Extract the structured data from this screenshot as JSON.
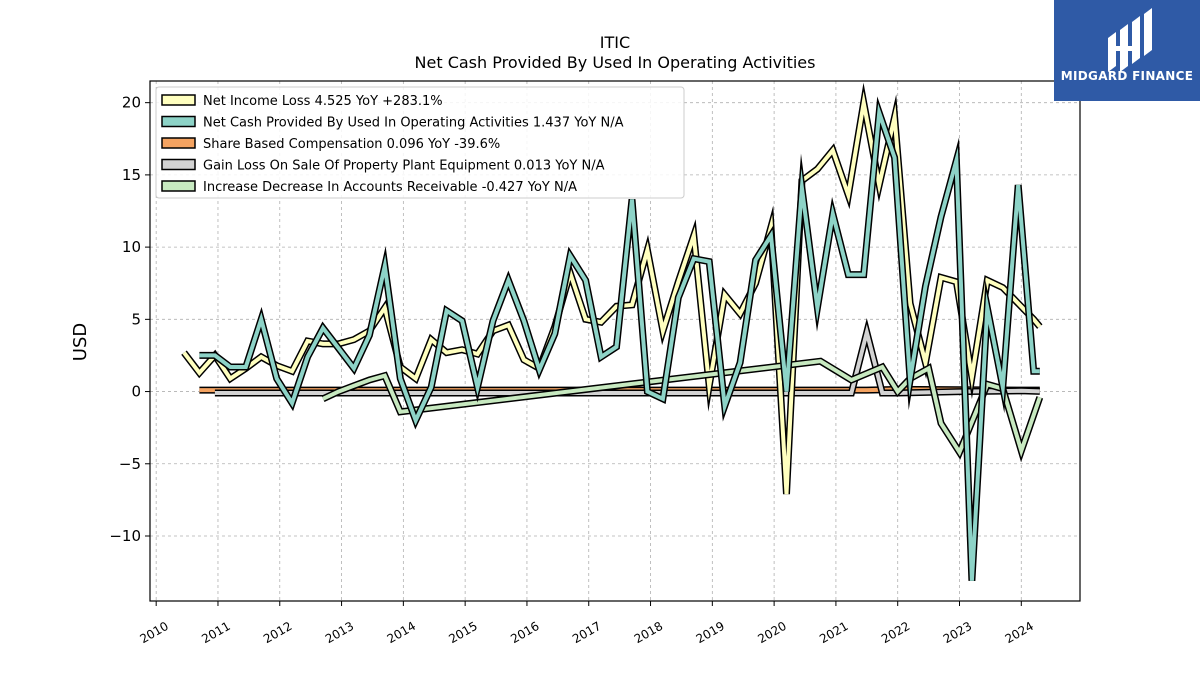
{
  "chart_data": {
    "type": "line",
    "title": "ITIC",
    "subtitle": "Net Cash Provided By Used In Operating Activities",
    "ylabel": "USD",
    "xlabel": "",
    "xlim": [
      2009.9,
      2024.95
    ],
    "ylim": [
      -14.5,
      21.5
    ],
    "yticks": [
      -10,
      -5,
      0,
      5,
      10,
      15,
      20
    ],
    "ytick_labels": [
      "−10",
      "−5",
      "0",
      "5",
      "10",
      "15",
      "20"
    ],
    "xticks": [
      2010,
      2011,
      2012,
      2013,
      2014,
      2015,
      2016,
      2017,
      2018,
      2019,
      2020,
      2021,
      2022,
      2023,
      2024
    ],
    "xtick_labels": [
      "2010",
      "2011",
      "2012",
      "2013",
      "2014",
      "2015",
      "2016",
      "2017",
      "2018",
      "2019",
      "2020",
      "2021",
      "2022",
      "2023",
      "2024"
    ],
    "grid": true,
    "legend_position": "top-left",
    "series": [
      {
        "name": "Share Based Compensation",
        "legend_label": "Share Based Compensation  0.096 YoY -39.6%",
        "color": "#f4a361",
        "x": [
          2010.7,
          2011.0,
          2012.0,
          2013.0,
          2014.0,
          2015.0,
          2016.0,
          2017.0,
          2018.0,
          2019.0,
          2020.0,
          2021.0,
          2021.3,
          2021.5,
          2022.0,
          2023.0,
          2024.0,
          2024.3
        ],
        "values": [
          0.1,
          0.1,
          0.1,
          0.1,
          0.1,
          0.1,
          0.1,
          0.1,
          0.1,
          0.1,
          0.1,
          0.1,
          0.1,
          0.1,
          0.15,
          0.12,
          0.1,
          0.1
        ]
      },
      {
        "name": "Gain Loss On Sale Of Property Plant Equipment",
        "legend_label": "Gain Loss On Sale Of Property Plant Equipment  0.013 YoY N/A",
        "color": "#d3d3d3",
        "x": [
          2010.95,
          2012.0,
          2013.0,
          2014.0,
          2015.0,
          2016.0,
          2017.0,
          2018.0,
          2019.0,
          2020.0,
          2021.0,
          2021.25,
          2021.5,
          2021.75,
          2022.0,
          2023.0,
          2024.0,
          2024.3
        ],
        "values": [
          -0.1,
          -0.1,
          -0.1,
          -0.1,
          -0.1,
          -0.1,
          -0.1,
          -0.1,
          -0.1,
          -0.1,
          -0.1,
          -0.1,
          4.1,
          -0.1,
          -0.1,
          0.0,
          0.05,
          0.01
        ]
      },
      {
        "name": "Net Income Loss",
        "legend_label": "Net Income Loss  4.525 YoY +283.1%",
        "color": "#ffffbf",
        "x": [
          2010.45,
          2010.7,
          2010.95,
          2011.2,
          2011.45,
          2011.7,
          2011.95,
          2012.2,
          2012.45,
          2012.7,
          2012.95,
          2013.2,
          2013.45,
          2013.7,
          2013.95,
          2014.2,
          2014.45,
          2014.7,
          2014.95,
          2015.2,
          2015.45,
          2015.7,
          2015.95,
          2016.2,
          2016.45,
          2016.7,
          2016.95,
          2017.2,
          2017.45,
          2017.7,
          2017.95,
          2018.2,
          2018.45,
          2018.7,
          2018.95,
          2019.2,
          2019.45,
          2019.7,
          2019.95,
          2020.2,
          2020.45,
          2020.7,
          2020.95,
          2021.2,
          2021.45,
          2021.7,
          2021.95,
          2022.2,
          2022.45,
          2022.7,
          2022.95,
          2023.2,
          2023.45,
          2023.7,
          2023.95,
          2024.2,
          2024.3
        ],
        "values": [
          2.7,
          1.3,
          2.5,
          0.9,
          1.6,
          2.4,
          1.8,
          1.4,
          3.5,
          3.3,
          3.3,
          3.6,
          4.2,
          5.8,
          1.7,
          0.9,
          3.6,
          2.7,
          2.9,
          2.6,
          4.2,
          4.6,
          2.2,
          1.6,
          4.5,
          8.2,
          5.0,
          4.8,
          5.9,
          6.0,
          9.8,
          4.2,
          7.6,
          10.8,
          0.4,
          6.7,
          5.4,
          7.5,
          11.4,
          -7.1,
          14.6,
          15.4,
          16.7,
          13.6,
          20.0,
          14.3,
          19.0,
          6.1,
          2.0,
          7.9,
          7.6,
          1.0,
          7.7,
          7.2,
          6.1,
          5.0,
          4.5
        ]
      },
      {
        "name": "Increase Decrease In Accounts Receivable",
        "legend_label": "Increase Decrease In Accounts Receivable  -0.427 YoY N/A",
        "color": "#c7e9c0",
        "x": [
          2012.7,
          2012.95,
          2013.2,
          2013.45,
          2013.7,
          2013.95,
          2020.75,
          2021.25,
          2021.75,
          2022.0,
          2022.2,
          2022.5,
          2022.7,
          2023.0,
          2023.45,
          2023.7,
          2024.0,
          2024.3
        ],
        "values": [
          -0.5,
          0.0,
          0.4,
          0.8,
          1.1,
          -1.4,
          2.1,
          0.8,
          1.7,
          0.0,
          0.9,
          1.6,
          -2.2,
          -4.2,
          0.5,
          0.2,
          -4.1,
          -0.4
        ]
      },
      {
        "name": "Net Cash Provided By Used In Operating Activities",
        "legend_label": "Net Cash Provided By Used In Operating Activities  1.437 YoY N/A",
        "color": "#8dd3c7",
        "x": [
          2010.7,
          2010.95,
          2011.2,
          2011.45,
          2011.7,
          2011.95,
          2012.2,
          2012.45,
          2012.7,
          2012.95,
          2013.2,
          2013.45,
          2013.7,
          2013.95,
          2014.2,
          2014.45,
          2014.7,
          2014.95,
          2015.2,
          2015.45,
          2015.7,
          2015.95,
          2016.2,
          2016.45,
          2016.7,
          2016.95,
          2017.2,
          2017.45,
          2017.7,
          2017.95,
          2018.2,
          2018.45,
          2018.7,
          2018.95,
          2019.2,
          2019.45,
          2019.7,
          2019.95,
          2020.2,
          2020.45,
          2020.7,
          2020.95,
          2021.2,
          2021.45,
          2021.7,
          2021.95,
          2022.2,
          2022.45,
          2022.7,
          2022.95,
          2023.2,
          2023.45,
          2023.7,
          2023.95,
          2024.2,
          2024.3
        ],
        "values": [
          2.5,
          2.5,
          1.7,
          1.7,
          5.0,
          0.9,
          -0.8,
          2.4,
          4.4,
          3.0,
          1.6,
          3.9,
          8.7,
          0.9,
          -2.0,
          0.3,
          5.6,
          4.9,
          0.3,
          4.9,
          7.7,
          4.9,
          1.5,
          4.0,
          9.4,
          7.7,
          2.4,
          3.1,
          13.3,
          0.0,
          -0.5,
          6.5,
          9.2,
          9.0,
          -1.0,
          2.0,
          9.1,
          10.8,
          0.0,
          14.1,
          5.8,
          12.3,
          8.1,
          8.1,
          19.3,
          16.2,
          0.8,
          7.3,
          12.1,
          16.0,
          -13.1,
          5.8,
          0.3,
          14.3,
          1.4,
          1.4
        ]
      }
    ],
    "legend_order": [
      2,
      4,
      0,
      1,
      3
    ]
  },
  "logo": {
    "text": "MIDGARD FINANCE",
    "bg_color": "#2f5aa6",
    "icon": "midgard-logo-icon"
  },
  "colors": {
    "grid": "#b0b0b0",
    "outline": "#000000"
  }
}
